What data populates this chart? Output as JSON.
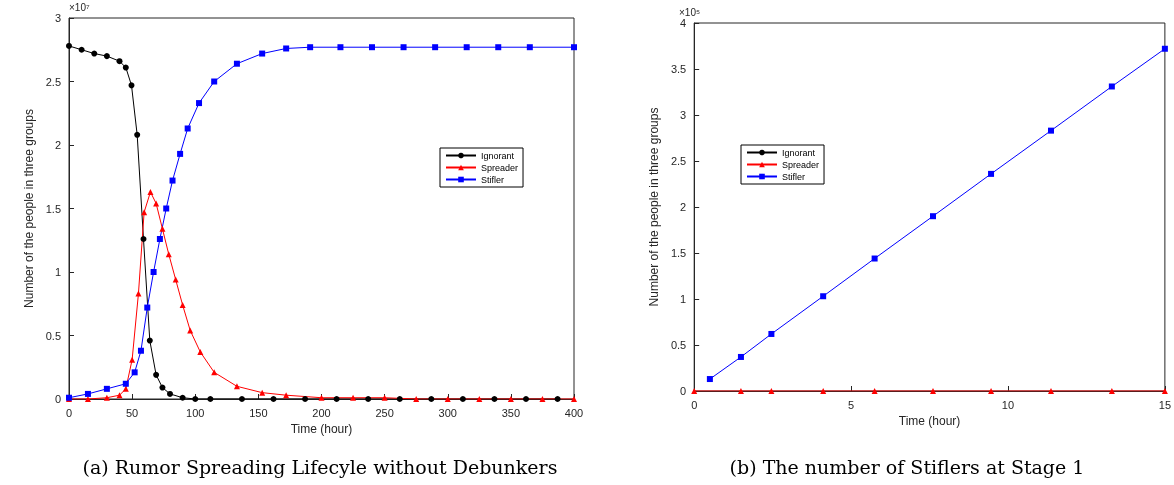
{
  "chart_data": [
    {
      "type": "line",
      "title": "(a) Rumor Spreading Lifecyle without Debunkers",
      "xlabel": "Time (hour)",
      "ylabel": "Number of the people in three groups",
      "annotations": [
        "×10⁷"
      ],
      "xlim": [
        0,
        400
      ],
      "xticks": [
        0,
        50,
        100,
        150,
        200,
        250,
        300,
        350,
        400
      ],
      "ylim": [
        0,
        3
      ],
      "yticks": [
        0,
        0.5,
        1,
        1.5,
        2,
        2.5,
        3
      ],
      "grid": false,
      "legend": "top right",
      "series": [
        {
          "name": "Ignorant",
          "color": "#000000",
          "marker": "circle",
          "x": [
            0,
            10,
            20,
            30,
            40,
            45,
            49.5,
            54,
            59,
            64,
            69,
            74,
            80,
            90,
            100,
            112,
            137,
            162,
            187,
            212,
            237,
            262,
            287,
            312,
            337,
            362,
            387
          ],
          "values": [
            2.78,
            2.75,
            2.72,
            2.7,
            2.66,
            2.61,
            2.47,
            2.08,
            1.26,
            0.46,
            0.19,
            0.09,
            0.04,
            0.01,
            0,
            0,
            0,
            0,
            0,
            0,
            0,
            0,
            0,
            0,
            0,
            0,
            0
          ]
        },
        {
          "name": "Spreader",
          "color": "#ff0000",
          "marker": "triangle",
          "x": [
            0,
            15,
            30,
            40,
            45,
            50,
            55,
            59.5,
            64.5,
            69,
            74,
            79,
            84.5,
            90,
            96,
            104,
            115,
            133,
            153,
            172,
            200,
            225,
            250,
            275,
            300,
            325,
            350,
            375,
            400
          ],
          "values": [
            0,
            0,
            0.01,
            0.03,
            0.08,
            0.31,
            0.83,
            1.47,
            1.63,
            1.54,
            1.34,
            1.14,
            0.94,
            0.74,
            0.54,
            0.37,
            0.21,
            0.1,
            0.05,
            0.03,
            0.01,
            0.01,
            0.01,
            0,
            0,
            0,
            0,
            0,
            0
          ]
        },
        {
          "name": "Stifler",
          "color": "#0000ff",
          "marker": "square",
          "x": [
            0,
            15,
            30,
            45,
            52,
            57,
            62,
            67,
            72,
            77,
            82,
            88,
            94,
            103,
            115,
            133,
            153,
            172,
            191,
            215,
            240,
            265,
            290,
            315,
            340,
            365,
            400
          ],
          "values": [
            0.01,
            0.04,
            0.08,
            0.12,
            0.21,
            0.38,
            0.72,
            1,
            1.26,
            1.5,
            1.72,
            1.93,
            2.13,
            2.33,
            2.5,
            2.64,
            2.72,
            2.76,
            2.77,
            2.77,
            2.77,
            2.77,
            2.77,
            2.77,
            2.77,
            2.77,
            2.77
          ]
        }
      ]
    },
    {
      "type": "line",
      "title": "(b) The number of Stiflers at Stage 1",
      "xlabel": "Time (hour)",
      "ylabel": "Number of the people in three groups",
      "annotations": [
        "×10⁵"
      ],
      "xlim": [
        0,
        15
      ],
      "xticks": [
        0,
        5,
        10,
        15
      ],
      "ylim": [
        0,
        4
      ],
      "yticks": [
        0,
        0.5,
        1,
        1.5,
        2,
        2.5,
        3,
        3.5,
        4
      ],
      "grid": false,
      "legend": "left",
      "series": [
        {
          "name": "Ignorant",
          "color": "#000000",
          "marker": "circle"
        },
        {
          "name": "Spreader",
          "color": "#ff0000",
          "marker": "triangle",
          "x": [
            0,
            1.49,
            2.46,
            4.11,
            5.75,
            7.61,
            9.46,
            11.37,
            13.31,
            15
          ],
          "values": [
            0,
            0,
            0,
            0,
            0,
            0,
            0,
            0,
            0,
            0
          ]
        },
        {
          "name": "Stifler",
          "color": "#0000ff",
          "marker": "square",
          "x": [
            0.5,
            1.49,
            2.46,
            4.11,
            5.75,
            7.61,
            9.46,
            11.37,
            13.31,
            15
          ],
          "values": [
            0.13,
            0.37,
            0.62,
            1.03,
            1.44,
            1.9,
            2.36,
            2.83,
            3.31,
            3.72
          ]
        }
      ]
    }
  ]
}
